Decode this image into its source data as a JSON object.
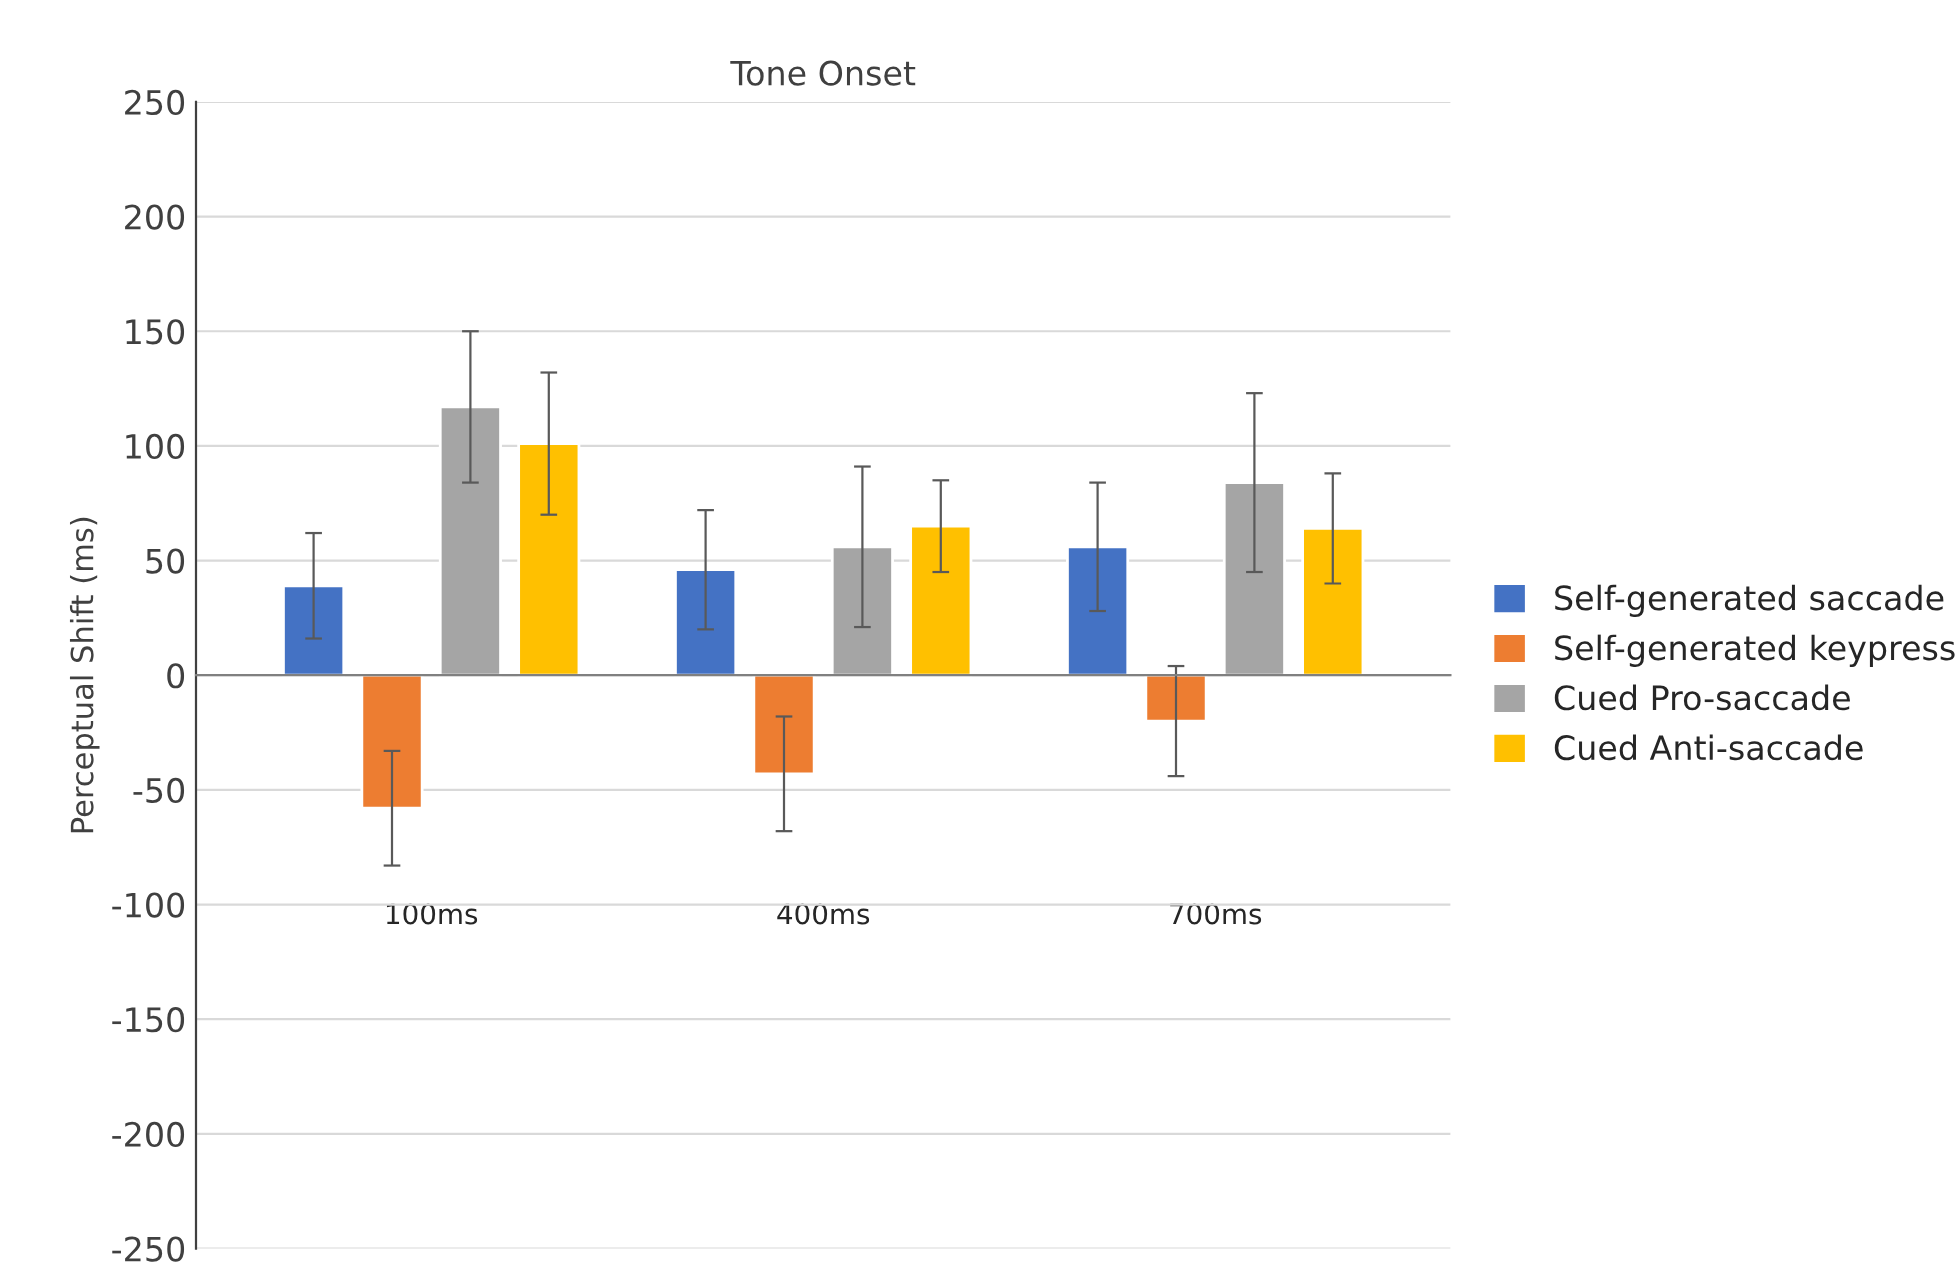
{
  "chart_data": {
    "type": "bar",
    "title": "Tone Onset",
    "ylabel": "Perceptual Shift (ms)",
    "categories": [
      "100ms",
      "400ms",
      "700ms"
    ],
    "series": [
      {
        "name": "Self-generated saccade",
        "color": "#4472c4",
        "values": [
          39,
          46,
          56
        ],
        "errors": [
          23,
          26,
          28
        ]
      },
      {
        "name": "Self-generated keypress",
        "color": "#ed7d31",
        "values": [
          -58,
          -43,
          -20
        ],
        "errors": [
          25,
          25,
          24
        ]
      },
      {
        "name": "Cued Pro-saccade",
        "color": "#a5a5a5",
        "values": [
          117,
          56,
          84
        ],
        "errors": [
          33,
          35,
          39
        ]
      },
      {
        "name": "Cued Anti-saccade",
        "color": "#ffc000",
        "values": [
          101,
          65,
          64
        ],
        "errors": [
          31,
          20,
          24
        ]
      }
    ],
    "ylim": [
      -250,
      250
    ],
    "yticks": [
      -250,
      -200,
      -150,
      -100,
      -50,
      0,
      50,
      100,
      150,
      200,
      250
    ],
    "grid": "y",
    "legend": "right"
  }
}
